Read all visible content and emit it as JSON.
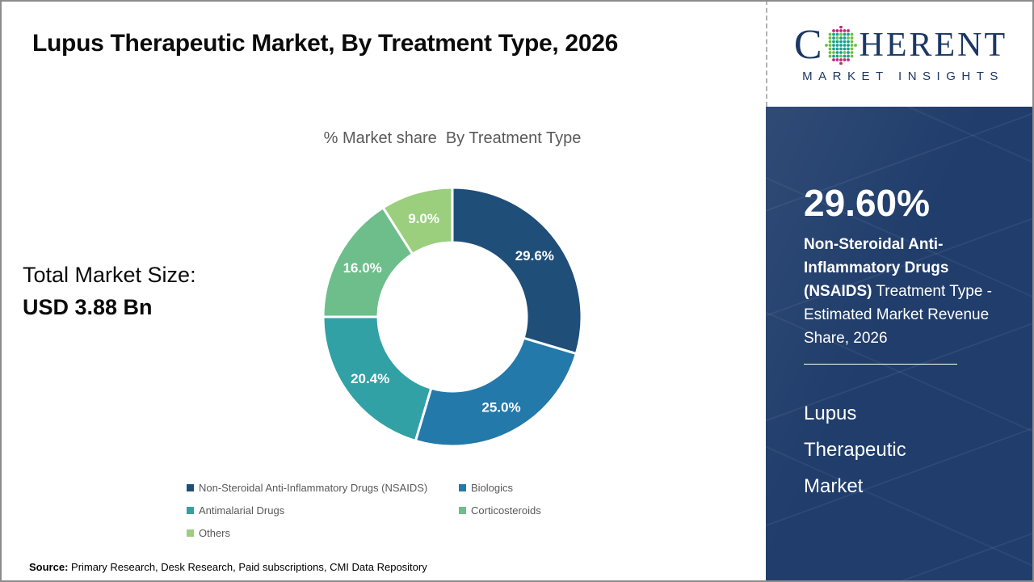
{
  "title": "Lupus Therapeutic Market,  By Treatment Type, 2026",
  "logo": {
    "brand_first_letter": "C",
    "brand_rest": "HERENT",
    "tagline": "MARKET INSIGHTS",
    "navy": "#1b3764",
    "globe_dot_colors": {
      "teal": "#18a08b",
      "green": "#6cbe45",
      "magenta": "#c0267e"
    }
  },
  "total_market": {
    "label": "Total Market Size:",
    "value": "USD 3.88 Bn"
  },
  "chart_data": {
    "type": "pie",
    "donut": true,
    "title": "% Market share  By Treatment Type",
    "legend_position": "bottom",
    "start_angle_deg": 0,
    "direction": "clockwise",
    "slices": [
      {
        "label": "Non-Steroidal Anti-Inflammatory Drugs (NSAIDS)",
        "value": 29.6,
        "display": "29.6%",
        "color": "#1F4E79"
      },
      {
        "label": "Biologics",
        "value": 25.0,
        "display": "25.0%",
        "color": "#2379A9"
      },
      {
        "label": "Antimalarial Drugs",
        "value": 20.4,
        "display": "20.4%",
        "color": "#31A1A5"
      },
      {
        "label": "Corticosteroids",
        "value": 16.0,
        "display": "16.0%",
        "color": "#6EBE8B"
      },
      {
        "label": "Others",
        "value": 9.0,
        "display": "9.0%",
        "color": "#9BCF7E"
      }
    ]
  },
  "sidebar": {
    "stat_value": "29.60%",
    "stat_bold": "Non-Steroidal Anti-Inflammatory Drugs (NSAIDS)",
    "stat_regular": " Treatment Type - Estimated Market Revenue Share, 2026",
    "market_name": "Lupus Therapeutic Market",
    "panel_color": "#203d6b"
  },
  "source": {
    "label": "Source:",
    "text": " Primary Research, Desk Research, Paid subscriptions, CMI Data Repository"
  }
}
